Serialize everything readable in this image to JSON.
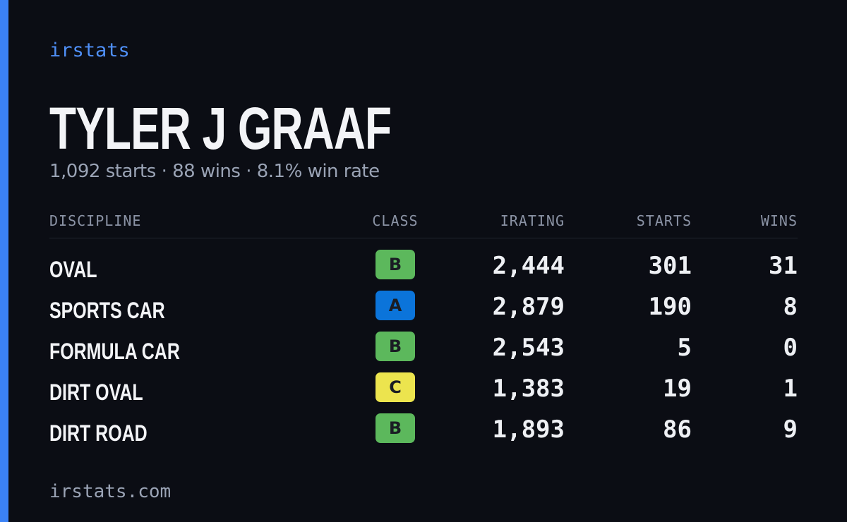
{
  "brand": "irstats",
  "name": "TYLER J GRAAF",
  "summary": "1,092 starts · 88 wins · 8.1% win rate",
  "table": {
    "headers": [
      "DISCIPLINE",
      "CLASS",
      "IRATING",
      "STARTS",
      "WINS"
    ],
    "rows": [
      {
        "discipline": "OVAL",
        "class": "B",
        "class_color": "#5cb85c",
        "irating": "2,444",
        "starts": 301,
        "wins": 31
      },
      {
        "discipline": "SPORTS CAR",
        "class": "A",
        "class_color": "#0b74da",
        "irating": "2,879",
        "starts": 190,
        "wins": 8
      },
      {
        "discipline": "FORMULA CAR",
        "class": "B",
        "class_color": "#5cb85c",
        "irating": "2,543",
        "starts": 5,
        "wins": 0
      },
      {
        "discipline": "DIRT OVAL",
        "class": "C",
        "class_color": "#ece44e",
        "irating": "1,383",
        "starts": 19,
        "wins": 1
      },
      {
        "discipline": "DIRT ROAD",
        "class": "B",
        "class_color": "#5cb85c",
        "irating": "1,893",
        "starts": 86,
        "wins": 9
      }
    ]
  },
  "footer": "irstats.com"
}
